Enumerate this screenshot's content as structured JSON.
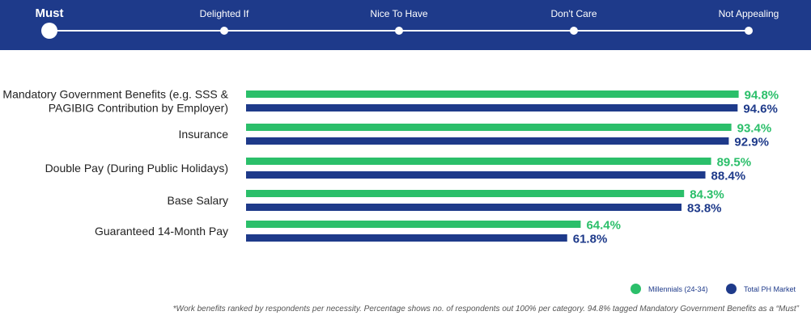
{
  "scale": {
    "steps": [
      {
        "label": "Must",
        "active": true
      },
      {
        "label": "Delighted If",
        "active": false
      },
      {
        "label": "Nice To Have",
        "active": false
      },
      {
        "label": "Don't Care",
        "active": false
      },
      {
        "label": "Not Appealing",
        "active": false
      }
    ]
  },
  "chart_data": {
    "type": "bar",
    "orientation": "horizontal",
    "categories": [
      [
        "Mandatory Government Benefits (e.g. SSS &",
        "PAGIBIG Contribution by Employer)"
      ],
      [
        "Insurance"
      ],
      [
        "Double Pay (During Public Holidays)"
      ],
      [
        "Base Salary"
      ],
      [
        "Guaranteed 14-Month Pay"
      ]
    ],
    "series": [
      {
        "name": "Millennials (24-34)",
        "color": "#2bbf6a",
        "values": [
          94.8,
          93.4,
          89.5,
          84.3,
          64.4
        ]
      },
      {
        "name": "Total PH Market",
        "color": "#1e3a8a",
        "values": [
          94.6,
          92.9,
          88.4,
          83.8,
          61.8
        ]
      }
    ],
    "value_suffix": "%",
    "xlim": [
      0,
      100
    ],
    "legend_position": "bottom-right",
    "grid": false
  },
  "legend": {
    "millennials": "Millennials (24-34)",
    "total": "Total PH Market"
  },
  "footnote": "*Work benefits ranked by respondents per necessity. Percentage shows no. of respondents out 100% per category. 94.8% tagged Mandatory Government Benefits as a “Must”"
}
